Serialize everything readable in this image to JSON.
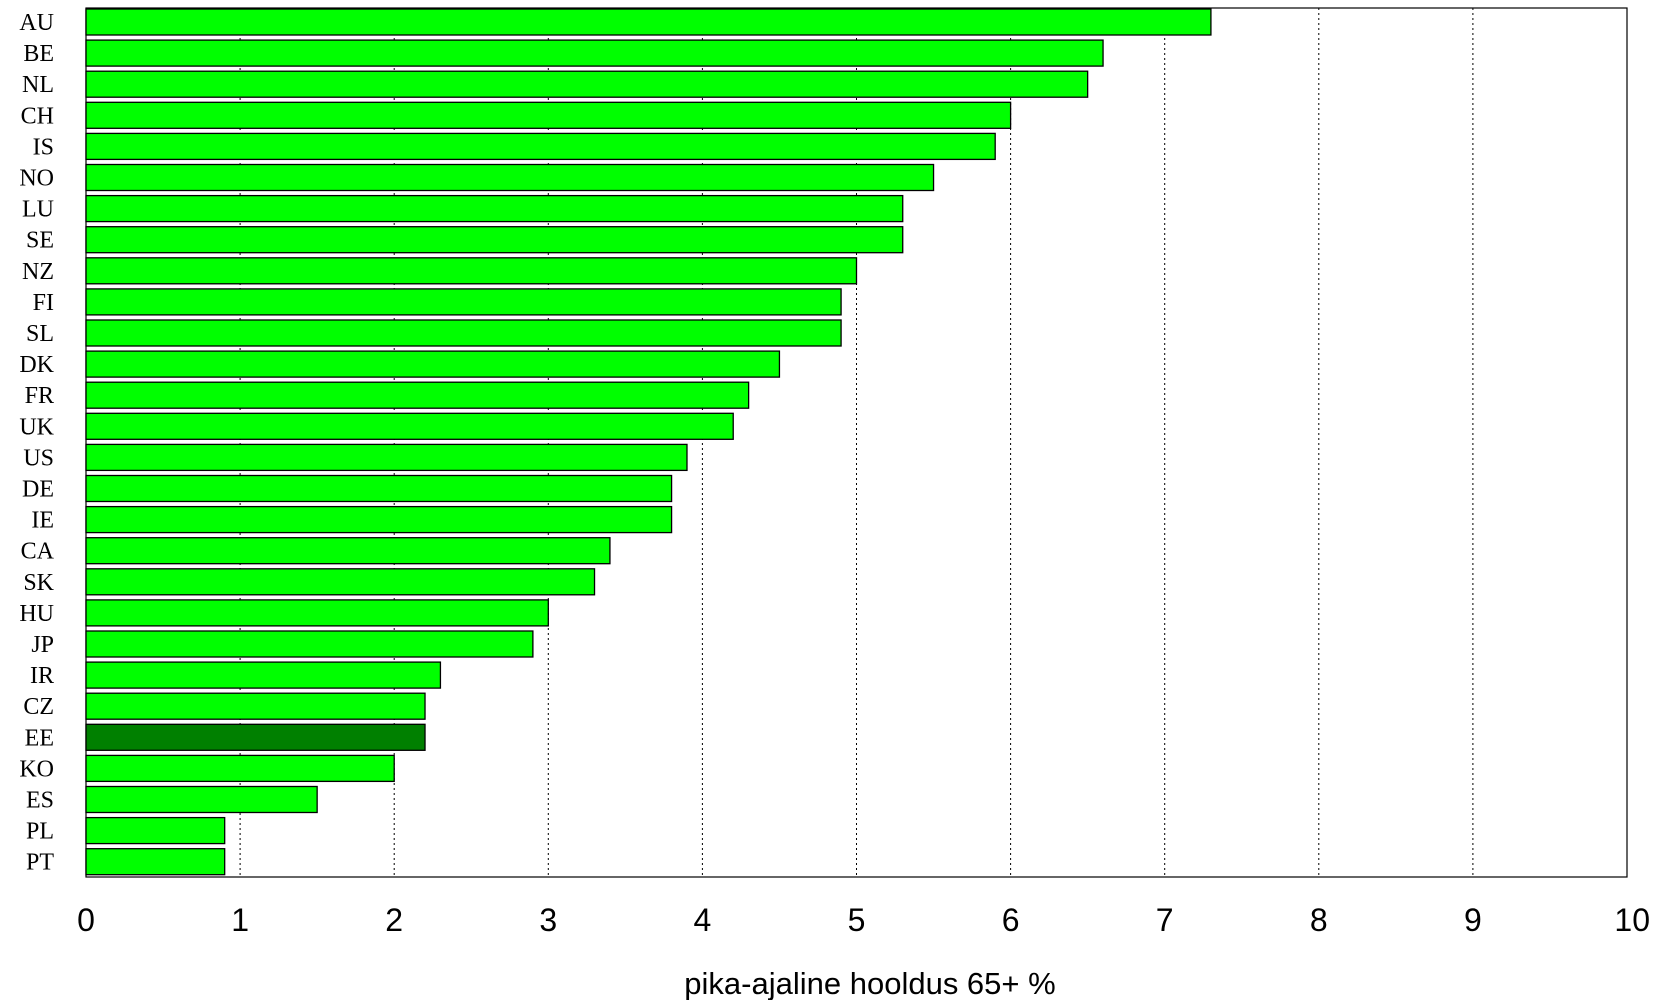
{
  "chart_data": {
    "type": "bar",
    "orientation": "horizontal",
    "categories": [
      "AU",
      "BE",
      "NL",
      "CH",
      "IS",
      "NO",
      "LU",
      "SE",
      "NZ",
      "FI",
      "SL",
      "DK",
      "FR",
      "UK",
      "US",
      "DE",
      "IE",
      "CA",
      "SK",
      "HU",
      "JP",
      "IR",
      "CZ",
      "EE",
      "KO",
      "ES",
      "PL",
      "PT"
    ],
    "values": [
      7.3,
      6.6,
      6.5,
      6.0,
      5.9,
      5.5,
      5.3,
      5.3,
      5.0,
      4.9,
      4.9,
      4.5,
      4.3,
      4.2,
      3.9,
      3.8,
      3.8,
      3.4,
      3.3,
      3.0,
      2.9,
      2.3,
      2.2,
      2.2,
      2.0,
      1.5,
      0.9,
      0.9
    ],
    "highlight": "EE",
    "title": "",
    "xlabel": "pika-ajaline hooldus 65+ %",
    "ylabel": "",
    "xlim": [
      0,
      10
    ],
    "xticks": [
      "0",
      "1",
      "2",
      "3",
      "4",
      "5",
      "6",
      "7",
      "8",
      "9",
      "10"
    ],
    "grid": "vertical dotted",
    "colors": {
      "bar": "#00ff00",
      "highlight_bar": "#008000",
      "bar_border": "#000000",
      "grid": "#000000"
    }
  }
}
